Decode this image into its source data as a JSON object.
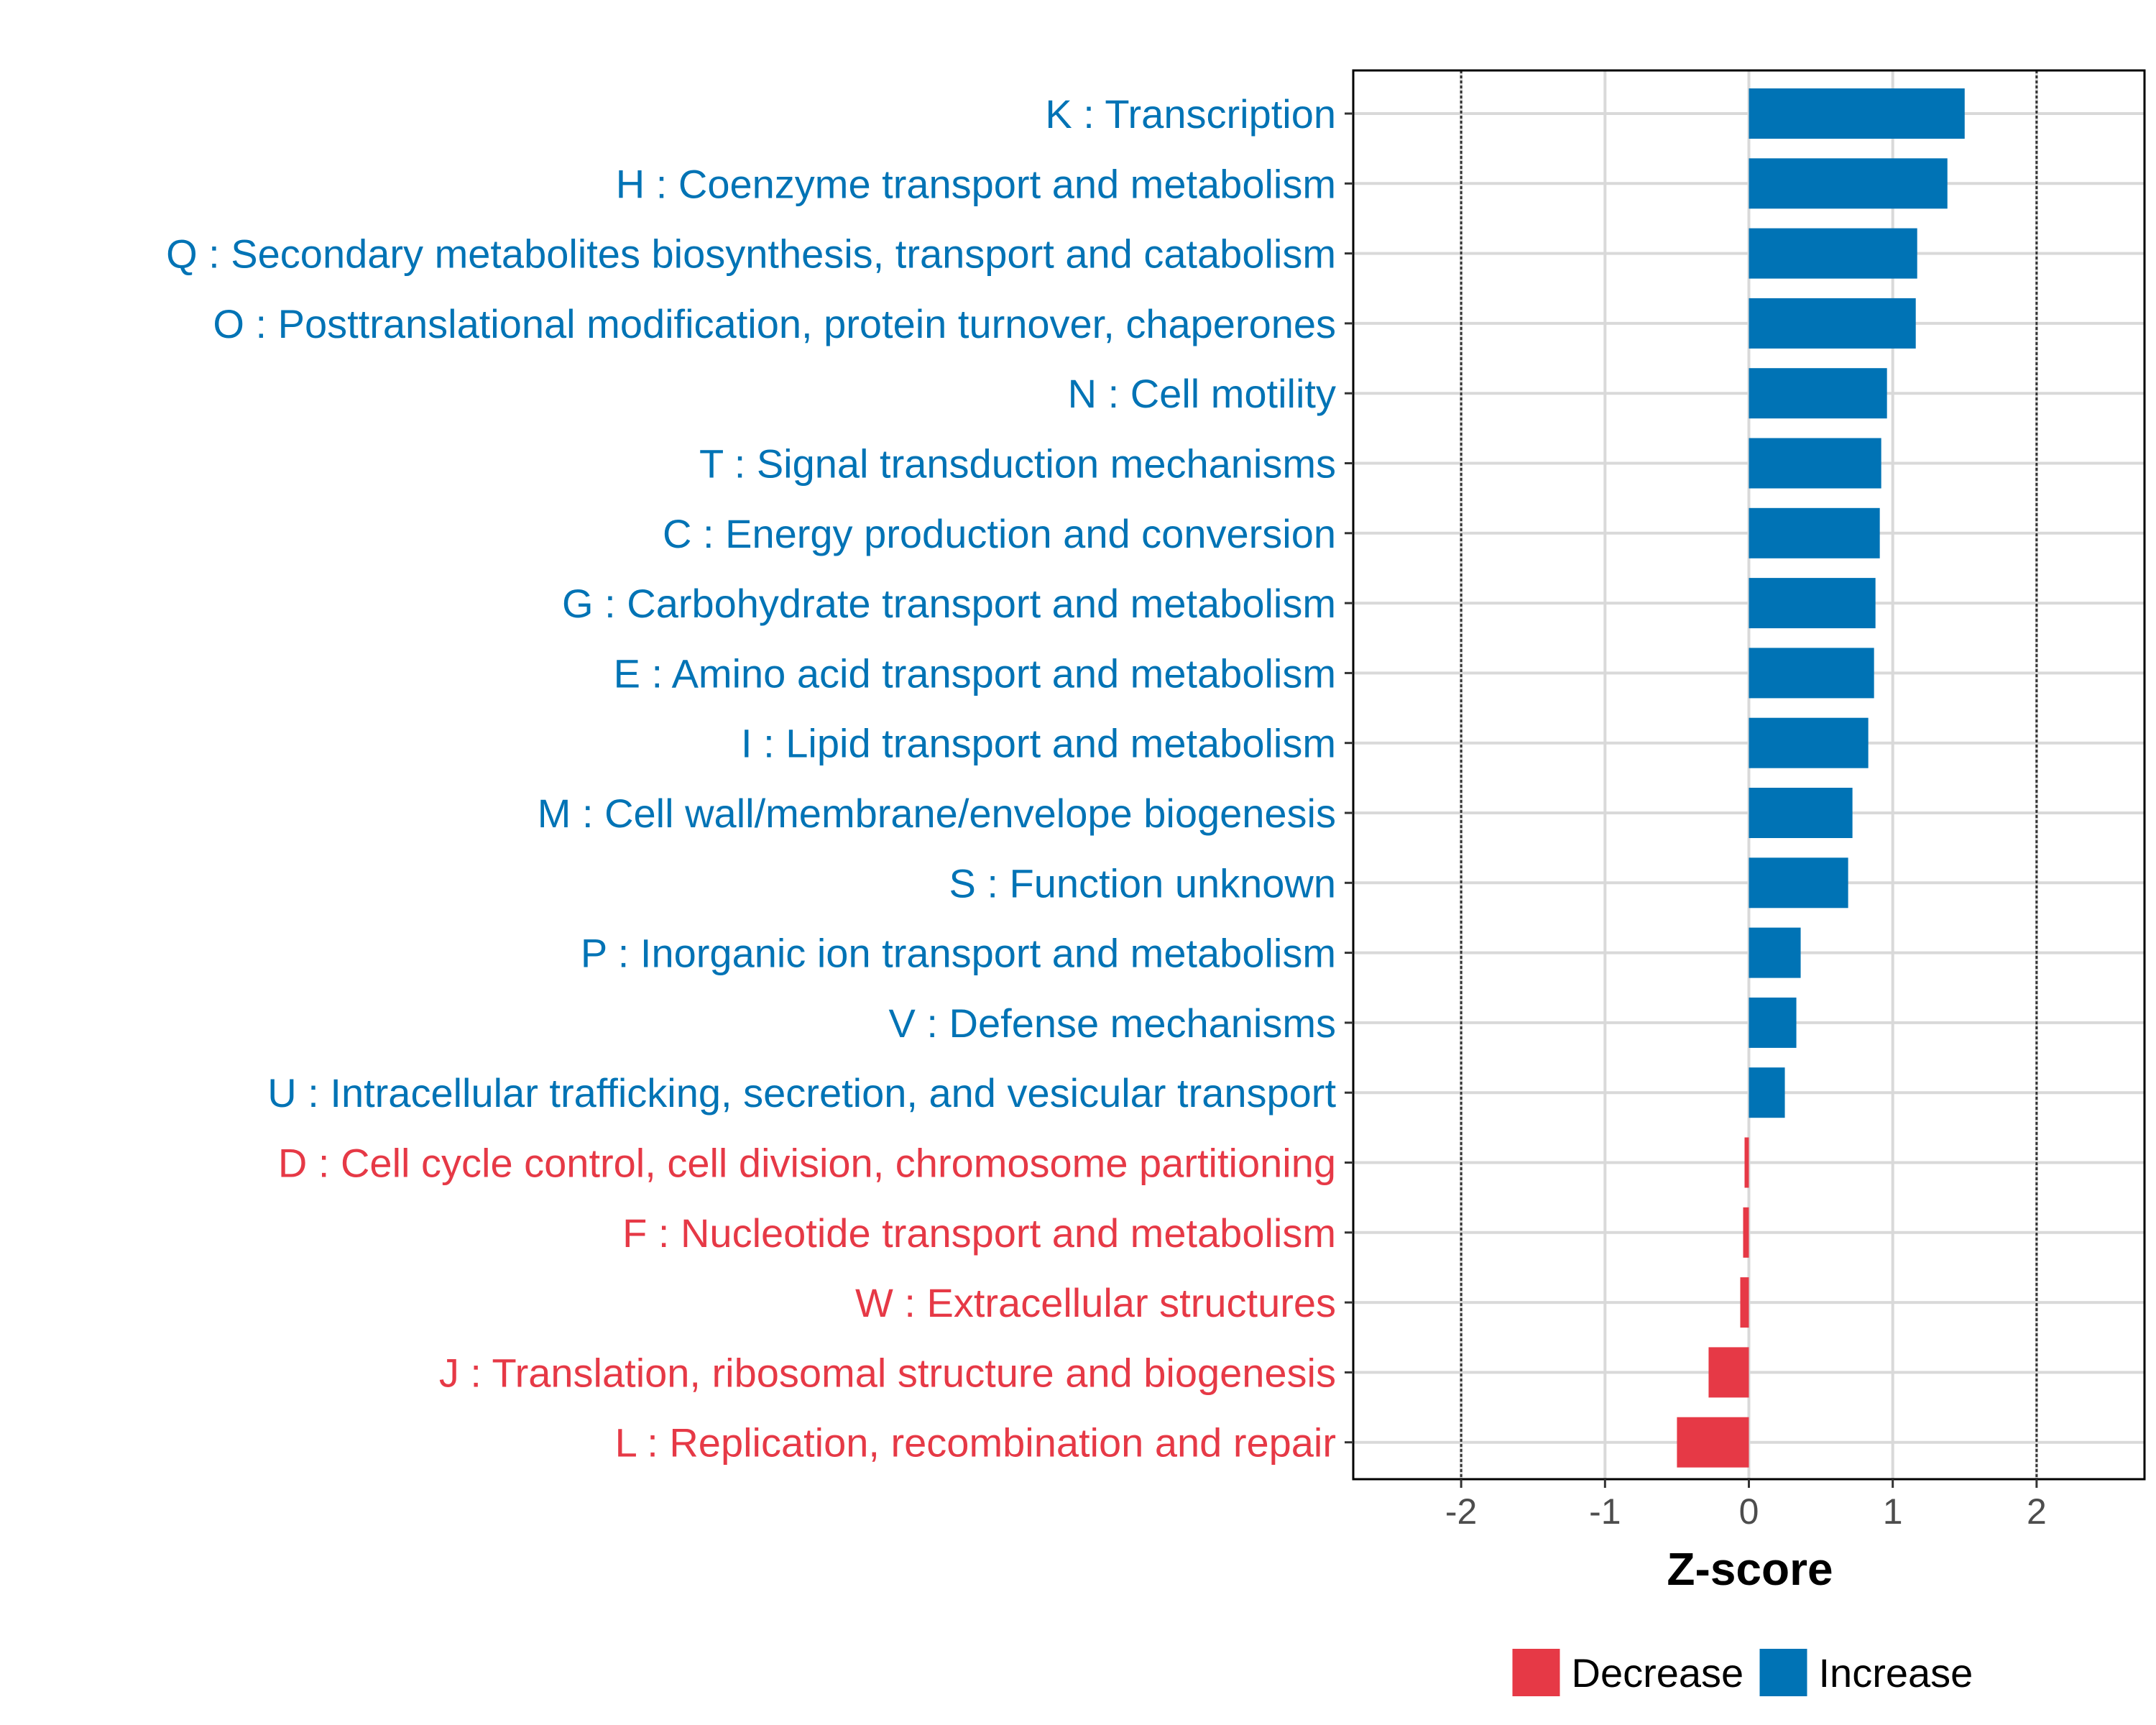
{
  "chart_data": {
    "type": "bar",
    "orientation": "horizontal",
    "title": "",
    "xlabel": "Z-score",
    "ylabel": "",
    "xlim": [
      -2.75,
      2.75
    ],
    "xticks": [
      -2,
      -1,
      0,
      1,
      2
    ],
    "xtick_labels": [
      "-2",
      "-1",
      "0",
      "1",
      "2"
    ],
    "reference_lines": [
      -2,
      2
    ],
    "grid": true,
    "legend_position": "bottom",
    "colors": {
      "Increase": "#0073b5",
      "Decrease": "#e63946"
    },
    "legend": [
      {
        "name": "Decrease",
        "color": "#e63946"
      },
      {
        "name": "Increase",
        "color": "#0073b5"
      }
    ],
    "categories": [
      "K : Transcription",
      "H : Coenzyme transport and metabolism",
      "Q : Secondary metabolites biosynthesis, transport and catabolism",
      "O : Posttranslational modification, protein turnover, chaperones",
      "N : Cell motility",
      "T : Signal transduction mechanisms",
      "C : Energy production and conversion",
      "G : Carbohydrate transport and metabolism",
      "E : Amino acid transport and metabolism",
      "I : Lipid transport and metabolism",
      "M : Cell wall/membrane/envelope biogenesis",
      "S : Function unknown",
      "P : Inorganic ion transport and metabolism",
      "V : Defense mechanisms",
      "U : Intracellular trafficking, secretion, and vesicular transport",
      "D : Cell cycle control, cell division, chromosome partitioning",
      "F : Nucleotide transport and metabolism",
      "W : Extracellular structures",
      "J : Translation, ribosomal structure and biogenesis",
      "L : Replication, recombination and repair"
    ],
    "values": [
      1.5,
      1.38,
      1.17,
      1.16,
      0.96,
      0.92,
      0.91,
      0.88,
      0.87,
      0.83,
      0.72,
      0.69,
      0.36,
      0.33,
      0.25,
      -0.03,
      -0.04,
      -0.06,
      -0.28,
      -0.5
    ],
    "groups": [
      "Increase",
      "Increase",
      "Increase",
      "Increase",
      "Increase",
      "Increase",
      "Increase",
      "Increase",
      "Increase",
      "Increase",
      "Increase",
      "Increase",
      "Increase",
      "Increase",
      "Increase",
      "Decrease",
      "Decrease",
      "Decrease",
      "Decrease",
      "Decrease"
    ]
  }
}
